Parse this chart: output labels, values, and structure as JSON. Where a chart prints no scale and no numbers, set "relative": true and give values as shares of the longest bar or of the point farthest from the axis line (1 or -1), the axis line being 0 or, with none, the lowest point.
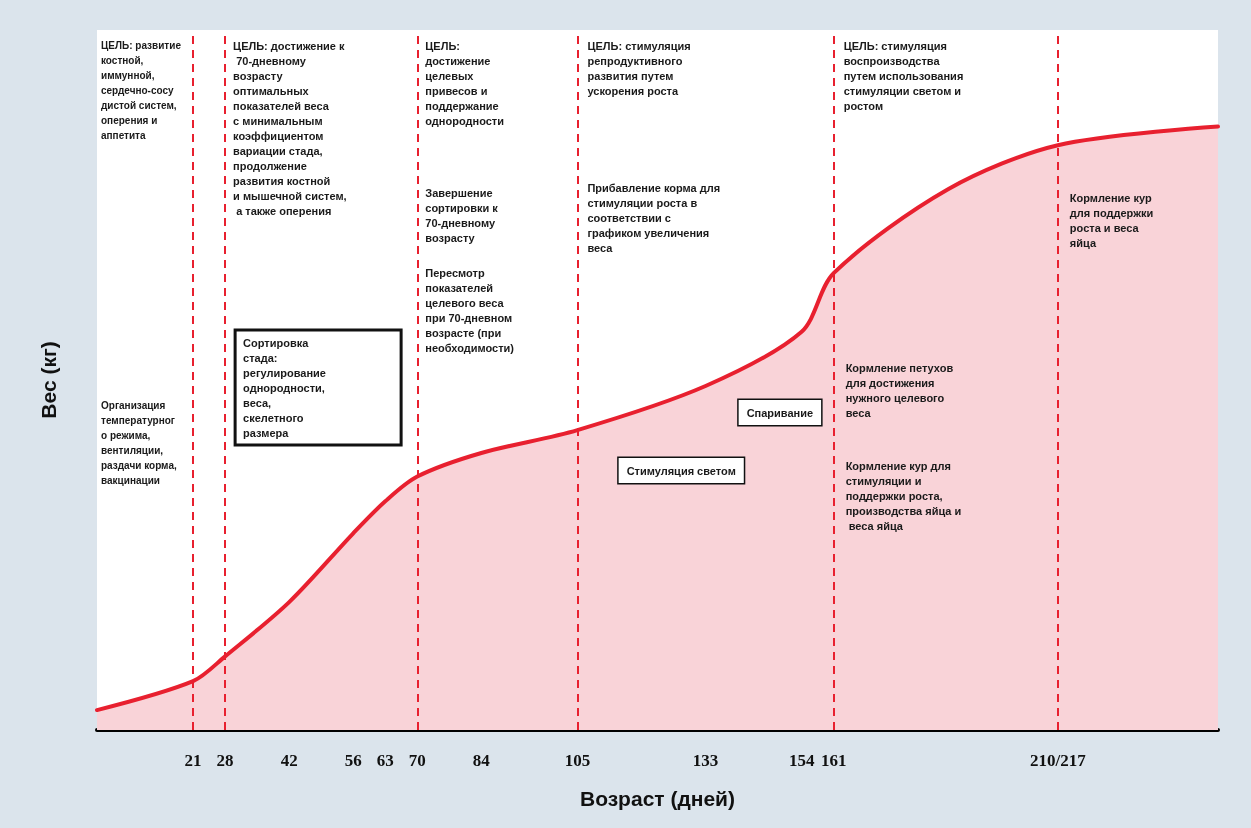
{
  "chart_data": {
    "type": "area",
    "xlabel": "Возраст (дней)",
    "ylabel": "Вес (кг)",
    "relative": true,
    "grid": false,
    "marker": "none",
    "x": [
      0,
      21,
      28,
      42,
      56,
      63,
      70,
      84,
      105,
      133,
      154,
      161,
      186,
      210,
      245
    ],
    "series": [
      {
        "color": "#e8202f",
        "values": [
          0.033,
          0.081,
          0.122,
          0.212,
          0.326,
          0.379,
          0.42,
          0.459,
          0.497,
          0.57,
          0.66,
          0.757,
          0.896,
          0.969,
          1
        ]
      }
    ],
    "xlim": [
      0,
      245
    ],
    "xticks": [
      21,
      28,
      42,
      56,
      63,
      70,
      84,
      105,
      133,
      154,
      161,
      {
        "value": 210,
        "label": "210/217"
      }
    ],
    "ref_lines": [
      {
        "axis": "x",
        "value": 21,
        "color": "#e8202f",
        "line_style": "dashed"
      },
      {
        "axis": "x",
        "value": 28,
        "color": "#e8202f",
        "line_style": "dashed"
      },
      {
        "axis": "x",
        "value": 70,
        "color": "#e8202f",
        "line_style": "dashed"
      },
      {
        "axis": "x",
        "value": 105,
        "color": "#e8202f",
        "line_style": "dashed"
      },
      {
        "axis": "x",
        "value": 161,
        "color": "#e8202f",
        "line_style": "dashed"
      },
      {
        "axis": "x",
        "value": 210,
        "color": "#e8202f",
        "line_style": "dashed"
      }
    ],
    "annotations": [
      "ЦЕЛЬ: развитие костной, иммунной, сердечно-сосудистой систем, оперения и аппетита",
      "ЦЕЛЬ: достижение к 70-дневному возрасту оптимальных показателей веса с минимальным коэффициентом вариации стада, продолжение развития костной и мышечной систем, а также оперения",
      "ЦЕЛЬ: достижение целевых привесов и поддержание однородности",
      "ЦЕЛЬ: стимуляция репродуктивного развития путем ускорения роста",
      "ЦЕЛЬ: стимуляция воспроизводства путем использования стимуляции светом и ростом",
      "Организация температурного режима, вентиляции, раздачи корма, вакцинации",
      "Сортировка стада: регулирование однородности, веса, скелетного размера",
      "Завершение сортировки к 70-дневному возрасту",
      "Пересмотр показателей целевого веса при 70-дневном возрасте (при необходимости)",
      "Прибавление корма для стимуляции роста в соответствии с графиком увеличения веса",
      "Спаривание",
      "Стимуляция светом",
      "Кормление петухов для достижения нужного целевого веса",
      "Кормление кур для стимуляции и поддержки роста, производства яйца и веса яйца",
      "Кормление кур для поддержки роста и веса яйца"
    ]
  }
}
